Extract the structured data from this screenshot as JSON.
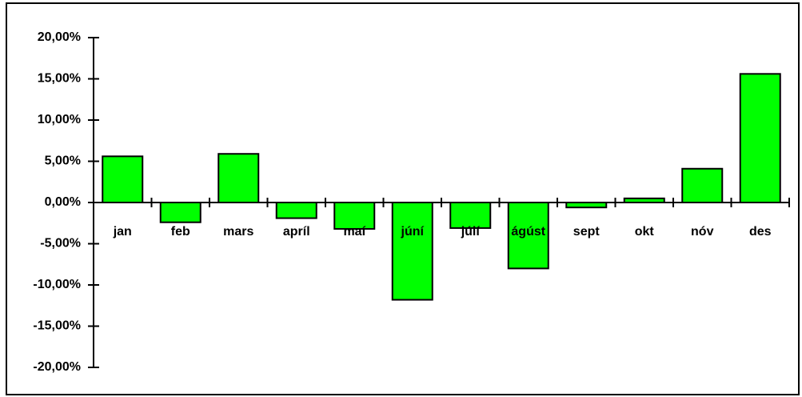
{
  "chart_data": {
    "type": "bar",
    "categories": [
      "jan",
      "feb",
      "mars",
      "apríl",
      "maí",
      "júní",
      "júlí",
      "ágúst",
      "sept",
      "okt",
      "nóv",
      "des"
    ],
    "values": [
      5.6,
      -2.4,
      5.9,
      -1.9,
      -3.2,
      -11.8,
      -3.1,
      -8.0,
      -0.6,
      0.5,
      4.1,
      15.6
    ],
    "color": "#00ff00",
    "ylim": [
      -20,
      20
    ],
    "yticks": [
      {
        "value": -20,
        "label": "-20,00%"
      },
      {
        "value": -15,
        "label": "-15,00%"
      },
      {
        "value": -10,
        "label": "-10,00%"
      },
      {
        "value": -5,
        "label": "-5,00%"
      },
      {
        "value": 0,
        "label": "0,00%"
      },
      {
        "value": 5,
        "label": "5,00%"
      },
      {
        "value": 10,
        "label": "10,00%"
      },
      {
        "value": 15,
        "label": "15,00%"
      },
      {
        "value": 20,
        "label": "20,00%"
      }
    ],
    "grid": false
  }
}
